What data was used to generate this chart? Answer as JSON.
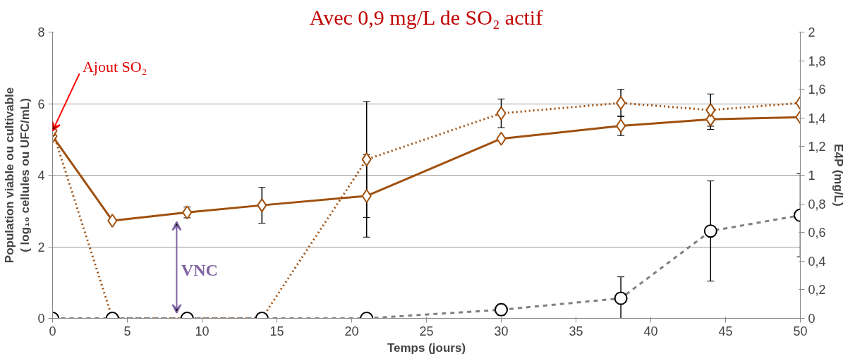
{
  "chart_data": {
    "type": "line",
    "title": "Avec 0,9 mg/L de SO₂ actif",
    "xlabel": "Temps (jours)",
    "ylabel": "Population viable ou cultivable\n( log₁₀ cellules ou UFC/mL)",
    "y2label": "E4P (mg/L)",
    "x": [
      0,
      4,
      9,
      14,
      21,
      30,
      38,
      44,
      50
    ],
    "series": [
      {
        "color": "#a0500f",
        "line_style": "solid",
        "marker": "diamond",
        "values": [
          5.09,
          2.73,
          2.96,
          3.16,
          3.42,
          5.02,
          5.38,
          5.56,
          5.62
        ],
        "errors": [
          0.1,
          null,
          0.15,
          0.5,
          1.15,
          null,
          0.27,
          0.28,
          0.05
        ]
      },
      {
        "color": "#a0500f",
        "line_style": "dotted",
        "marker": "diamond",
        "values": [
          5.24,
          0,
          0,
          0,
          4.44,
          5.73,
          6.02,
          5.82,
          6.02
        ],
        "errors": [
          null,
          null,
          null,
          null,
          1.62,
          0.4,
          0.38,
          0.45,
          null
        ]
      },
      {
        "color": "#808080",
        "line_style": "dashed",
        "marker": "circle",
        "axis": "y2",
        "values": [
          0,
          0,
          0,
          0,
          0,
          0.06,
          0.14,
          0.61,
          0.72
        ],
        "errors": [
          null,
          null,
          null,
          null,
          null,
          0.04,
          0.15,
          0.35,
          0.29
        ]
      }
    ],
    "xlim": [
      0,
      50
    ],
    "xticks": [
      0,
      5,
      10,
      15,
      20,
      25,
      30,
      35,
      40,
      45,
      50
    ],
    "ylim": [
      0,
      8
    ],
    "yticks": [
      0,
      2,
      4,
      6,
      8
    ],
    "y2lim": [
      0,
      2
    ],
    "y2ticks": [
      0,
      {
        "value": 0.2,
        "label": "0,2"
      },
      {
        "value": 0.4,
        "label": "0,4"
      },
      {
        "value": 0.6,
        "label": "0,6"
      },
      {
        "value": 0.8,
        "label": "0,8"
      },
      1,
      {
        "value": 1.2,
        "label": "1,2"
      },
      {
        "value": 1.4,
        "label": "1,4"
      },
      {
        "value": 1.6,
        "label": "1,6"
      },
      {
        "value": 1.8,
        "label": "1,8"
      },
      2
    ],
    "grid": "y",
    "annotations": [
      {
        "text": "Ajout SO₂",
        "x": 0,
        "y": 5.24
      },
      "VNC"
    ]
  }
}
